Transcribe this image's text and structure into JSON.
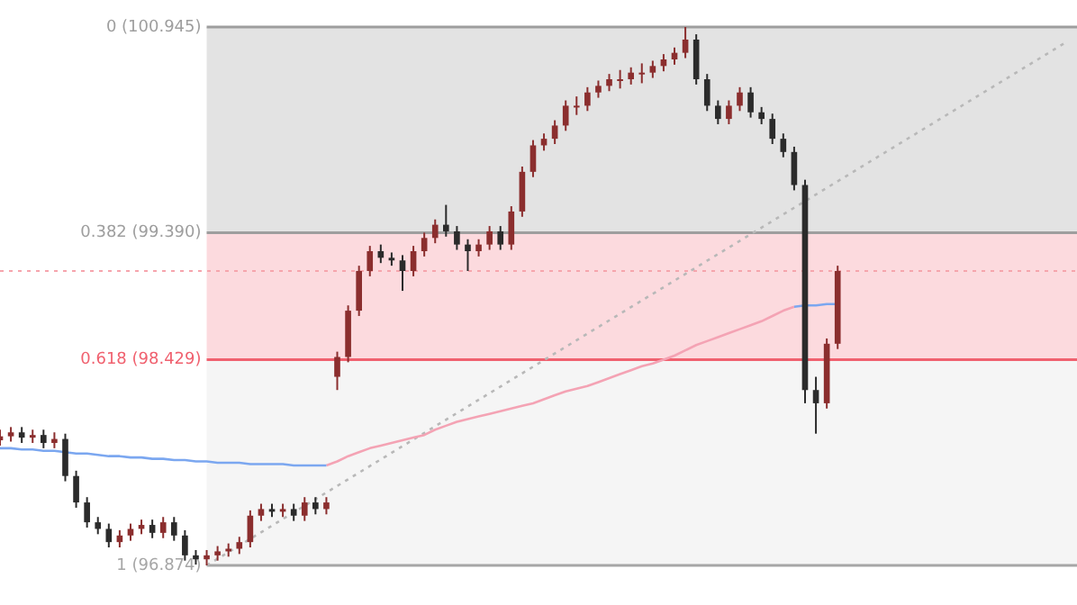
{
  "chart_data": {
    "type": "candlestick",
    "colors": [
      "#8b2e2e",
      "#8b2e2e",
      "#2b2b2b",
      "#8b2e2e",
      "#2b2b2b",
      "#8b2e2e",
      "#2b2b2b",
      "#2b2b2b",
      "#2b2b2b",
      "#2b2b2b",
      "#2b2b2b",
      "#8b2e2e",
      "#8b2e2e",
      "#8b2e2e",
      "#2b2b2b",
      "#8b2e2e",
      "#2b2b2b",
      "#2b2b2b",
      "#2b2b2b",
      "#8b2e2e",
      "#8b2e2e",
      "#8b2e2e",
      "#8b2e2e",
      "#8b2e2e",
      "#8b2e2e",
      "#2b2b2b",
      "#8b2e2e",
      "#2b2b2b",
      "#8b2e2e",
      "#2b2b2b",
      "#8b2e2e",
      "#8b2e2e",
      "#8b2e2e",
      "#8b2e2e",
      "#8b2e2e",
      "#2b2b2b",
      "#2b2b2b",
      "#2b2b2b",
      "#8b2e2e",
      "#8b2e2e",
      "#8b2e2e",
      "#2b2b2b",
      "#2b2b2b",
      "#2b2b2b",
      "#8b2e2e",
      "#8b2e2e",
      "#2b2b2b",
      "#8b2e2e",
      "#8b2e2e",
      "#8b2e2e",
      "#8b2e2e",
      "#8b2e2e",
      "#8b2e2e",
      "#8b2e2e",
      "#8b2e2e",
      "#8b2e2e",
      "#8b2e2e",
      "#8b2e2e",
      "#8b2e2e",
      "#8b2e2e",
      "#8b2e2e",
      "#8b2e2e",
      "#8b2e2e",
      "#8b2e2e",
      "#2b2b2b",
      "#2b2b2b",
      "#2b2b2b",
      "#8b2e2e",
      "#8b2e2e",
      "#2b2b2b",
      "#2b2b2b",
      "#2b2b2b",
      "#2b2b2b",
      "#2b2b2b",
      "#2b2b2b",
      "#2b2b2b",
      "#8b2e2e",
      "#8b2e2e",
      null,
      null,
      null,
      null,
      null,
      null,
      null,
      null,
      null,
      null,
      null,
      null,
      null,
      null,
      null,
      null,
      null,
      null,
      null,
      null,
      null,
      null
    ],
    "categories": [
      null,
      null,
      null,
      null,
      null,
      null,
      null,
      null,
      null,
      null,
      null,
      null,
      null,
      null,
      null,
      null,
      null,
      null,
      null,
      null,
      null,
      null,
      null,
      null,
      null,
      null,
      null,
      null,
      null,
      null,
      null,
      null,
      null,
      null,
      null,
      null,
      null,
      null,
      null,
      null,
      null,
      null,
      null,
      null,
      null,
      null,
      null,
      null,
      null,
      null,
      null,
      null,
      null,
      null,
      null,
      null,
      null,
      null,
      null,
      null,
      null,
      null,
      null,
      null,
      null,
      null,
      null,
      null,
      null,
      null,
      null,
      null,
      null,
      null,
      null,
      null,
      null,
      null,
      null,
      null,
      null,
      null,
      null,
      null,
      null,
      null,
      null,
      null,
      null,
      null,
      null,
      null,
      null,
      null,
      null,
      null,
      null,
      null,
      null,
      null
    ],
    "ohlc": [
      [
        97.82,
        97.9,
        97.78,
        97.85
      ],
      [
        97.85,
        97.92,
        97.81,
        97.88
      ],
      [
        97.88,
        97.92,
        97.8,
        97.84
      ],
      [
        97.84,
        97.9,
        97.8,
        97.86
      ],
      [
        97.86,
        97.9,
        97.76,
        97.8
      ],
      [
        97.8,
        97.88,
        97.76,
        97.83
      ],
      [
        97.83,
        97.87,
        97.51,
        97.55
      ],
      [
        97.55,
        97.59,
        97.31,
        97.35
      ],
      [
        97.35,
        97.39,
        97.16,
        97.2
      ],
      [
        97.2,
        97.24,
        97.11,
        97.15
      ],
      [
        97.15,
        97.19,
        97.01,
        97.05
      ],
      [
        97.05,
        97.14,
        97.01,
        97.1
      ],
      [
        97.1,
        97.19,
        97.06,
        97.15
      ],
      [
        97.15,
        97.22,
        97.11,
        97.18
      ],
      [
        97.18,
        97.22,
        97.08,
        97.12
      ],
      [
        97.12,
        97.24,
        97.08,
        97.2
      ],
      [
        97.2,
        97.24,
        97.06,
        97.1
      ],
      [
        97.1,
        97.14,
        96.91,
        96.95
      ],
      [
        96.95,
        96.99,
        96.88,
        96.92
      ],
      [
        96.92,
        96.99,
        96.874,
        96.95
      ],
      [
        96.95,
        97.02,
        96.91,
        96.98
      ],
      [
        96.98,
        97.04,
        96.94,
        97.0
      ],
      [
        97.0,
        97.09,
        96.96,
        97.05
      ],
      [
        97.05,
        97.29,
        97.01,
        97.25
      ],
      [
        97.25,
        97.34,
        97.21,
        97.3
      ],
      [
        97.3,
        97.34,
        97.24,
        97.28
      ],
      [
        97.28,
        97.34,
        97.24,
        97.3
      ],
      [
        97.3,
        97.34,
        97.21,
        97.25
      ],
      [
        97.25,
        97.39,
        97.21,
        97.35
      ],
      [
        97.35,
        97.39,
        97.26,
        97.3
      ],
      [
        97.3,
        97.39,
        97.26,
        97.35
      ],
      [
        98.3,
        98.49,
        98.2,
        98.45
      ],
      [
        98.45,
        98.84,
        98.41,
        98.8
      ],
      [
        98.8,
        99.14,
        98.76,
        99.1
      ],
      [
        99.1,
        99.29,
        99.06,
        99.25
      ],
      [
        99.25,
        99.3,
        99.16,
        99.2
      ],
      [
        99.2,
        99.24,
        99.14,
        99.18
      ],
      [
        99.18,
        99.22,
        98.95,
        99.1
      ],
      [
        99.1,
        99.29,
        99.06,
        99.25
      ],
      [
        99.25,
        99.39,
        99.21,
        99.35
      ],
      [
        99.35,
        99.49,
        99.31,
        99.45
      ],
      [
        99.45,
        99.6,
        99.36,
        99.4
      ],
      [
        99.4,
        99.44,
        99.26,
        99.3
      ],
      [
        99.3,
        99.34,
        99.1,
        99.25
      ],
      [
        99.25,
        99.34,
        99.21,
        99.3
      ],
      [
        99.3,
        99.44,
        99.26,
        99.4
      ],
      [
        99.4,
        99.44,
        99.26,
        99.3
      ],
      [
        99.3,
        99.59,
        99.26,
        99.55
      ],
      [
        99.55,
        99.89,
        99.51,
        99.85
      ],
      [
        99.85,
        100.09,
        99.81,
        100.05
      ],
      [
        100.05,
        100.14,
        100.01,
        100.1
      ],
      [
        100.1,
        100.24,
        100.06,
        100.2
      ],
      [
        100.2,
        100.39,
        100.16,
        100.35
      ],
      [
        100.35,
        100.42,
        100.28,
        100.35
      ],
      [
        100.35,
        100.49,
        100.31,
        100.45
      ],
      [
        100.45,
        100.54,
        100.41,
        100.5
      ],
      [
        100.5,
        100.59,
        100.46,
        100.55
      ],
      [
        100.55,
        100.62,
        100.48,
        100.55
      ],
      [
        100.55,
        100.64,
        100.51,
        100.6
      ],
      [
        100.6,
        100.67,
        100.52,
        100.6
      ],
      [
        100.6,
        100.69,
        100.56,
        100.65
      ],
      [
        100.65,
        100.74,
        100.61,
        100.7
      ],
      [
        100.7,
        100.79,
        100.66,
        100.75
      ],
      [
        100.75,
        100.945,
        100.71,
        100.85
      ],
      [
        100.85,
        100.89,
        100.51,
        100.55
      ],
      [
        100.55,
        100.59,
        100.31,
        100.35
      ],
      [
        100.35,
        100.39,
        100.21,
        100.25
      ],
      [
        100.25,
        100.39,
        100.21,
        100.35
      ],
      [
        100.35,
        100.49,
        100.31,
        100.45
      ],
      [
        100.45,
        100.49,
        100.26,
        100.3
      ],
      [
        100.3,
        100.34,
        100.21,
        100.25
      ],
      [
        100.25,
        100.29,
        100.06,
        100.1
      ],
      [
        100.1,
        100.14,
        99.96,
        100.0
      ],
      [
        100.0,
        100.04,
        99.71,
        99.75
      ],
      [
        99.75,
        99.79,
        98.1,
        98.2
      ],
      [
        98.2,
        98.3,
        97.87,
        98.1
      ],
      [
        98.1,
        98.59,
        98.06,
        98.55
      ],
      [
        98.55,
        99.14,
        98.51,
        99.1
      ],
      null,
      null,
      null,
      null,
      null,
      null,
      null,
      null,
      null,
      null,
      null,
      null,
      null,
      null,
      null,
      null,
      null,
      null,
      null,
      null,
      null,
      null
    ],
    "series": [
      {
        "type": "line",
        "color": "#7ba7f0",
        "values": [
          97.76,
          97.76,
          97.75,
          97.75,
          97.74,
          97.74,
          97.73,
          97.72,
          97.72,
          97.71,
          97.7,
          97.7,
          97.69,
          97.69,
          97.68,
          97.68,
          97.67,
          97.67,
          97.66,
          97.66,
          97.65,
          97.65,
          97.65,
          97.64,
          97.64,
          97.64,
          97.64,
          97.63,
          97.63,
          97.63,
          97.63,
          null,
          null,
          null,
          null,
          null,
          null,
          null,
          null,
          null,
          null,
          null,
          null,
          null,
          null,
          null,
          null,
          null,
          null,
          null,
          null,
          null,
          null,
          null,
          null,
          null,
          null,
          null,
          null,
          null,
          null,
          null,
          null,
          null,
          null,
          null,
          null,
          null,
          null,
          null,
          null,
          null,
          null,
          98.83,
          98.84,
          98.84,
          98.85,
          98.85,
          null,
          null,
          null,
          null,
          null,
          null,
          null,
          null,
          null,
          null,
          null,
          null,
          null,
          null,
          null,
          null,
          null,
          null,
          null,
          null,
          null,
          null
        ]
      },
      {
        "type": "line",
        "color": "#f4a3b4",
        "values": [
          null,
          null,
          null,
          null,
          null,
          null,
          null,
          null,
          null,
          null,
          null,
          null,
          null,
          null,
          null,
          null,
          null,
          null,
          null,
          null,
          null,
          null,
          null,
          null,
          null,
          null,
          null,
          null,
          null,
          null,
          97.63,
          97.66,
          97.7,
          97.73,
          97.76,
          97.78,
          97.8,
          97.82,
          97.84,
          97.86,
          97.9,
          97.93,
          97.96,
          97.98,
          98.0,
          98.02,
          98.04,
          98.06,
          98.08,
          98.1,
          98.13,
          98.16,
          98.19,
          98.21,
          98.23,
          98.26,
          98.29,
          98.32,
          98.35,
          98.38,
          98.4,
          98.43,
          98.46,
          98.5,
          98.54,
          98.57,
          98.6,
          98.63,
          98.66,
          98.69,
          98.72,
          98.76,
          98.8,
          98.83,
          null,
          null,
          null,
          null,
          null,
          null,
          null,
          null,
          null,
          null,
          null,
          null,
          null,
          null,
          null,
          null,
          null,
          null,
          null,
          null,
          null,
          null,
          null,
          null,
          null,
          null
        ]
      },
      {
        "type": "line",
        "color": "#b8b8b8",
        "line_style": "dotted",
        "values": [
          null,
          null,
          null,
          null,
          null,
          null,
          null,
          null,
          null,
          null,
          null,
          null,
          null,
          null,
          null,
          null,
          null,
          null,
          null,
          96.874,
          null,
          null,
          null,
          null,
          null,
          null,
          null,
          null,
          null,
          null,
          null,
          null,
          null,
          null,
          null,
          null,
          null,
          null,
          null,
          null,
          null,
          null,
          null,
          null,
          null,
          null,
          null,
          null,
          null,
          null,
          null,
          null,
          null,
          null,
          null,
          null,
          null,
          null,
          null,
          null,
          null,
          null,
          null,
          null,
          null,
          null,
          null,
          null,
          null,
          null,
          null,
          null,
          null,
          null,
          null,
          null,
          null,
          null,
          null,
          null,
          null,
          null,
          null,
          null,
          null,
          null,
          null,
          null,
          null,
          null,
          null,
          null,
          null,
          null,
          null,
          null,
          null,
          null,
          100.83,
          null
        ]
      }
    ],
    "ylim": [
      96.874,
      100.945
    ],
    "tick_labels": false,
    "bands": [
      {
        "axis": "y",
        "from": 99.39,
        "to": 100.945,
        "color": "#e3e3e3"
      },
      {
        "axis": "y",
        "from": 98.429,
        "to": 99.39,
        "color": "#fcdade"
      },
      {
        "axis": "y",
        "from": 96.874,
        "to": 98.429,
        "color": "#f5f5f5"
      }
    ],
    "ref_lines": [
      {
        "axis": "y",
        "value": 100.945,
        "label": "0 (100.945)",
        "color": "#9e9e9e"
      },
      {
        "axis": "y",
        "value": 99.39,
        "label": "0.382 (99.390)",
        "color": "#9e9e9e"
      },
      {
        "axis": "y",
        "value": 98.429,
        "label": "0.618 (98.429)",
        "color": "#f0616f"
      },
      {
        "axis": "y",
        "value": 96.874,
        "label": "1 (96.874)",
        "color": "#a6a6a6"
      },
      {
        "axis": "y",
        "value": 99.1,
        "color": "#f6a5ad",
        "line_style": "dotted"
      }
    ]
  }
}
